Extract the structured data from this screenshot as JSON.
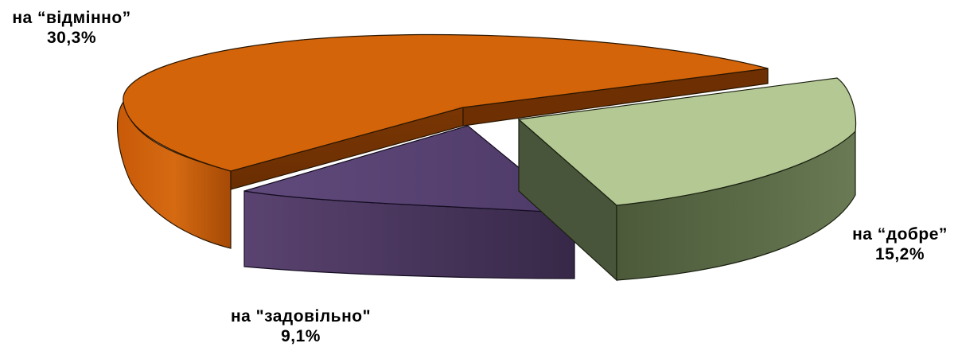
{
  "chart_data": {
    "type": "pie",
    "style": "3d-exploded",
    "slices": [
      {
        "label": "на “відмінно”",
        "value": 30.3,
        "value_label": "30,3%",
        "color": "#d4620a"
      },
      {
        "label": "на “добре”",
        "value": 15.2,
        "value_label": "15,2%",
        "color": "#b4c894"
      },
      {
        "label": "на \"задовільно\"",
        "value": 9.1,
        "value_label": "9,1%",
        "color": "#5c4476"
      }
    ]
  }
}
